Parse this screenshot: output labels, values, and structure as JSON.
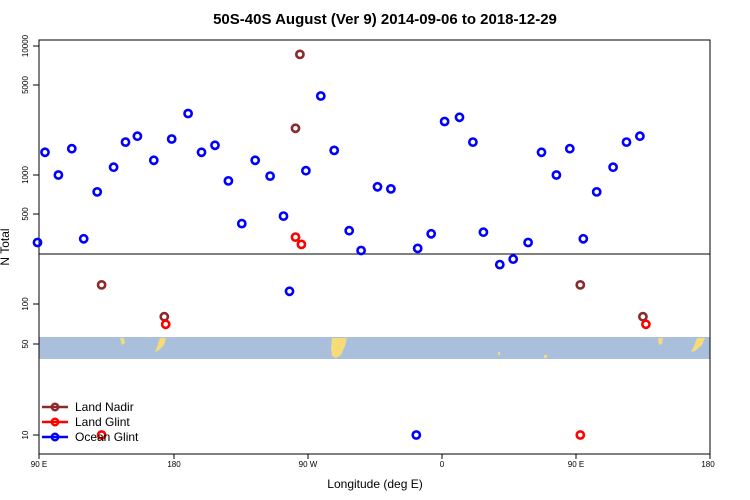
{
  "chart_data": {
    "type": "scatter",
    "title": "50S-40S August (Ver 9)   2014-09-06 to 2018-12-29",
    "xlabel": "Longitude (deg E)",
    "ylabel": "N Total",
    "x_ticks": [
      "90 E",
      "180",
      "90 W",
      "0",
      "90 E",
      "180"
    ],
    "y_ticks_upper": [
      "10000",
      "5000",
      "1000",
      "500"
    ],
    "y_ticks_lower": [
      "100",
      "50",
      "10"
    ],
    "colors": {
      "land_nadir": "#8b2a2a",
      "land_glint": "#ff0000",
      "ocean_glint": "#0000ff",
      "ocean_band": "#a9bfdc",
      "land_patch": "#f5dc78"
    },
    "series": [
      {
        "name": "Land Nadir",
        "key": "land_nadir",
        "points": [
          {
            "lon": 132,
            "n": 140
          },
          {
            "lon": 174,
            "n": 80
          },
          {
            "lon": 262,
            "n": 2300
          },
          {
            "lon": 265,
            "n": 8600
          },
          {
            "lon": 453,
            "n": 140
          },
          {
            "lon": 495,
            "n": 80
          }
        ]
      },
      {
        "name": "Land Glint",
        "key": "land_glint",
        "points": [
          {
            "lon": 132,
            "n": 10
          },
          {
            "lon": 175,
            "n": 70
          },
          {
            "lon": 262,
            "n": 330
          },
          {
            "lon": 266,
            "n": 290
          },
          {
            "lon": 453,
            "n": 10
          },
          {
            "lon": 497,
            "n": 70
          }
        ]
      },
      {
        "name": "Ocean Glint",
        "key": "ocean_glint",
        "points": [
          {
            "lon": 89,
            "n": 300
          },
          {
            "lon": 94,
            "n": 1500
          },
          {
            "lon": 103,
            "n": 1000
          },
          {
            "lon": 112,
            "n": 1600
          },
          {
            "lon": 120,
            "n": 320
          },
          {
            "lon": 129,
            "n": 740
          },
          {
            "lon": 140,
            "n": 1150
          },
          {
            "lon": 148,
            "n": 1800
          },
          {
            "lon": 156,
            "n": 2000
          },
          {
            "lon": 167,
            "n": 1300
          },
          {
            "lon": 179,
            "n": 1900
          },
          {
            "lon": 190,
            "n": 3000
          },
          {
            "lon": 199,
            "n": 1500
          },
          {
            "lon": 208,
            "n": 1700
          },
          {
            "lon": 217,
            "n": 900
          },
          {
            "lon": 226,
            "n": 420
          },
          {
            "lon": 235,
            "n": 1300
          },
          {
            "lon": 245,
            "n": 980
          },
          {
            "lon": 254,
            "n": 480
          },
          {
            "lon": 258,
            "n": 125
          },
          {
            "lon": 269,
            "n": 1080
          },
          {
            "lon": 279,
            "n": 4100
          },
          {
            "lon": 288,
            "n": 1550
          },
          {
            "lon": 298,
            "n": 370
          },
          {
            "lon": 306,
            "n": 260
          },
          {
            "lon": 317,
            "n": 810
          },
          {
            "lon": 326,
            "n": 780
          },
          {
            "lon": 343,
            "n": 10
          },
          {
            "lon": 344,
            "n": 270
          },
          {
            "lon": 353,
            "n": 350
          },
          {
            "lon": 362,
            "n": 2600
          },
          {
            "lon": 372,
            "n": 2800
          },
          {
            "lon": 381,
            "n": 1800
          },
          {
            "lon": 388,
            "n": 360
          },
          {
            "lon": 399,
            "n": 200
          },
          {
            "lon": 408,
            "n": 220
          },
          {
            "lon": 418,
            "n": 300
          },
          {
            "lon": 427,
            "n": 1500
          },
          {
            "lon": 437,
            "n": 1000
          },
          {
            "lon": 446,
            "n": 1600
          },
          {
            "lon": 455,
            "n": 320
          },
          {
            "lon": 464,
            "n": 740
          },
          {
            "lon": 475,
            "n": 1150
          },
          {
            "lon": 484,
            "n": 1800
          },
          {
            "lon": 493,
            "n": 2000
          }
        ]
      }
    ],
    "legend": [
      "Land Nadir",
      "Land Glint",
      "Ocean Glint"
    ],
    "legend_position": "bottom-left"
  }
}
